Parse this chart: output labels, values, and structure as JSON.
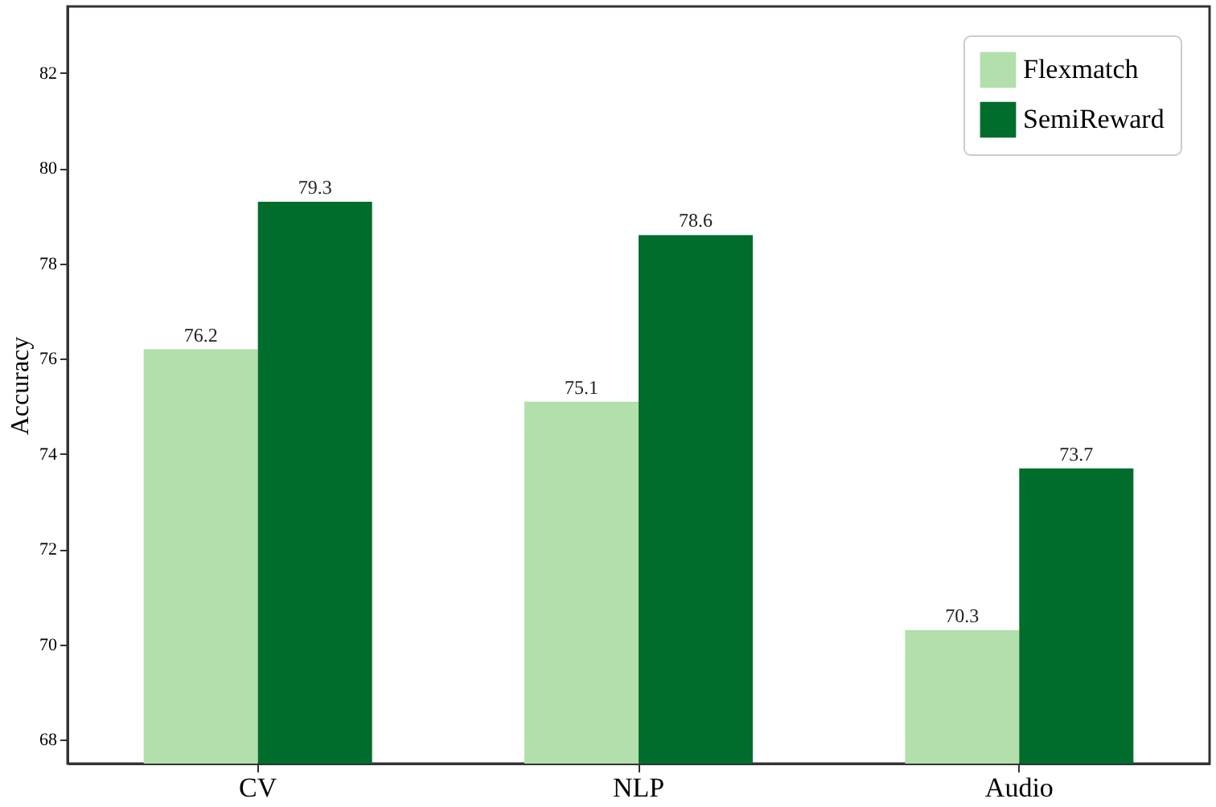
{
  "chart_data": {
    "type": "bar",
    "ylabel": "Accuracy",
    "categories": [
      "CV",
      "NLP",
      "Audio"
    ],
    "series": [
      {
        "name": "Flexmatch",
        "color": "#b2dfac",
        "values": [
          76.2,
          75.1,
          70.3
        ]
      },
      {
        "name": "SemiReward",
        "color": "#006d2c",
        "values": [
          79.3,
          78.6,
          73.7
        ]
      }
    ],
    "ylim": [
      67.5,
      83.4
    ],
    "yticks": [
      68,
      70,
      72,
      74,
      76,
      78,
      80,
      82
    ],
    "data_labels": true,
    "legend": "top right",
    "grid": false
  }
}
